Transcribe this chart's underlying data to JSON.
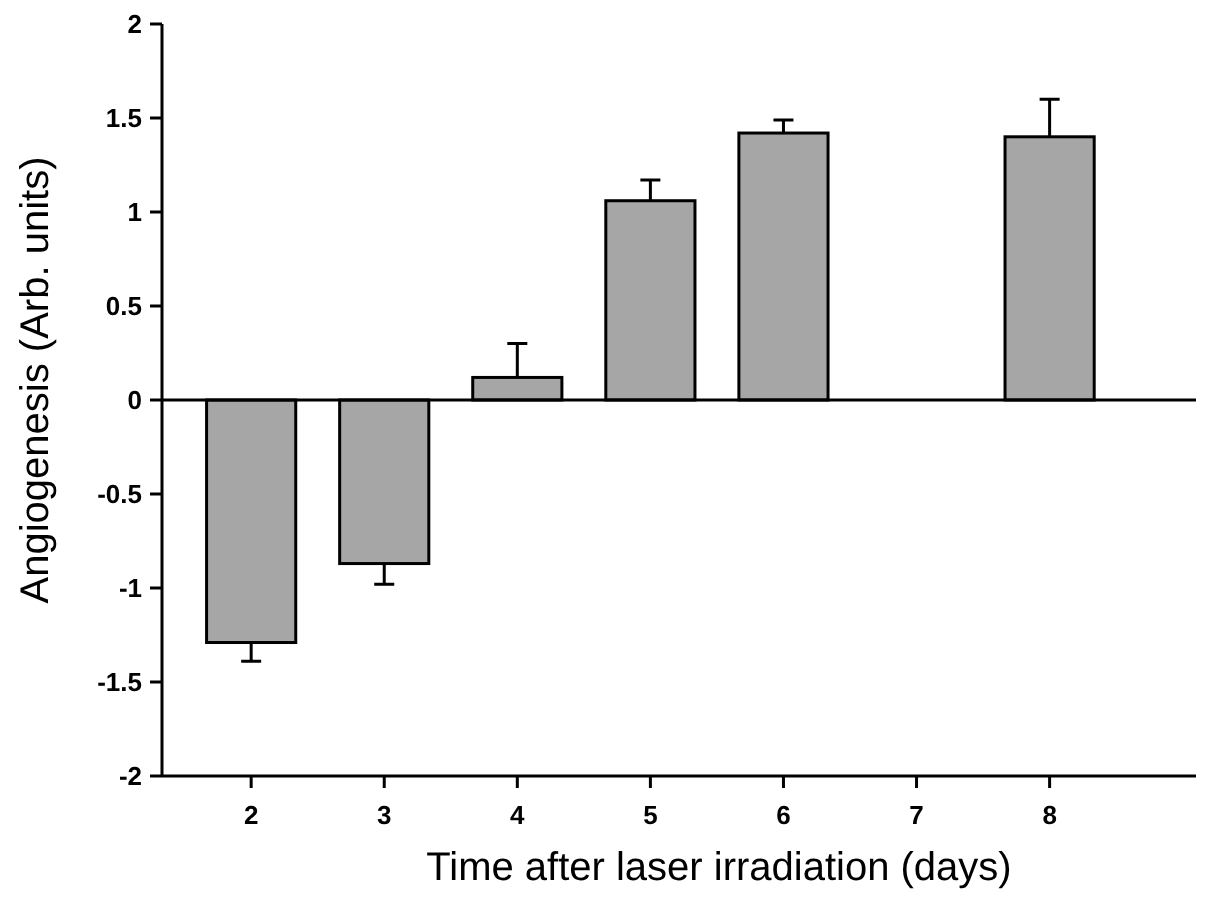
{
  "chart_data": {
    "type": "bar",
    "xlabel": "Time after laser irradiation (days)",
    "ylabel": "Angiogenesis (Arb. units)",
    "x": [
      2,
      3,
      4,
      5,
      6,
      8
    ],
    "values": [
      -1.29,
      -0.87,
      0.12,
      1.06,
      1.42,
      1.4
    ],
    "errors": [
      [
        -1.39,
        -1.29
      ],
      [
        -0.98,
        -0.87
      ],
      [
        0.12,
        0.3
      ],
      [
        1.06,
        1.17
      ],
      [
        1.42,
        1.49
      ],
      [
        1.4,
        1.6
      ]
    ],
    "color": "#a6a6a6",
    "xlim": [
      1.33,
      9.1
    ],
    "xticks": [
      2,
      3,
      4,
      5,
      6,
      7,
      8
    ],
    "ylim": [
      -2,
      2
    ],
    "yticks": [
      -2,
      -1.5,
      -1,
      -0.5,
      0,
      0.5,
      1,
      1.5,
      2
    ]
  }
}
